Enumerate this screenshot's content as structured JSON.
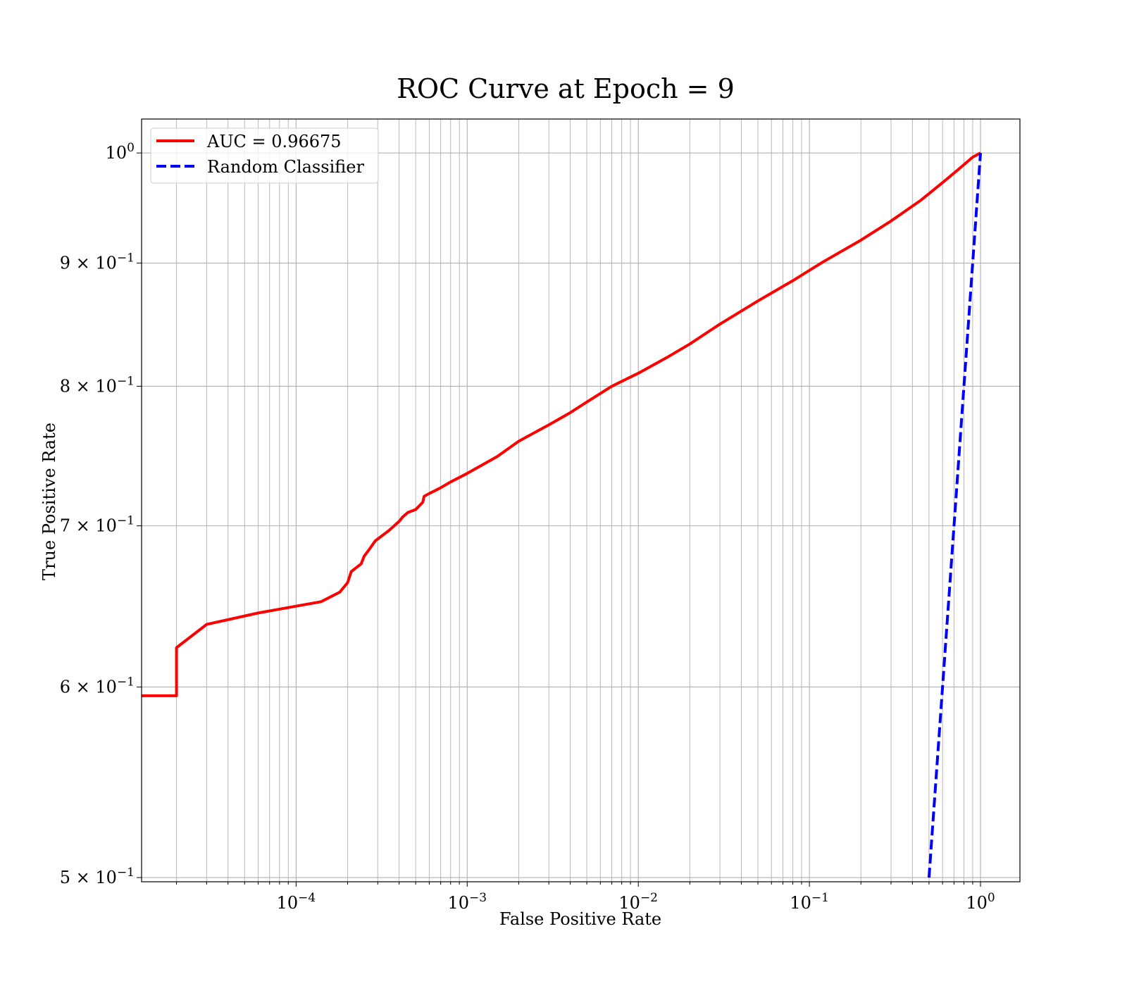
{
  "chart_data": {
    "type": "line",
    "title": "ROC Curve at Epoch = 9",
    "xlabel": "False Positive Rate",
    "ylabel": "True Positive Rate",
    "xscale": "log",
    "yscale": "log",
    "xlim": [
      1.25e-05,
      1.7
    ],
    "ylim": [
      0.498,
      1.033
    ],
    "grid": "both",
    "legend_position": "top-left",
    "x_ticks": [
      {
        "value": 0.0001,
        "base": "10",
        "exp": "−4"
      },
      {
        "value": 0.001,
        "base": "10",
        "exp": "−3"
      },
      {
        "value": 0.01,
        "base": "10",
        "exp": "−2"
      },
      {
        "value": 0.1,
        "base": "10",
        "exp": "−1"
      },
      {
        "value": 1,
        "base": "10",
        "exp": "0"
      }
    ],
    "y_ticks": [
      {
        "value": 0.5,
        "base": "5 × 10",
        "exp": "−1"
      },
      {
        "value": 0.6,
        "base": "6 × 10",
        "exp": "−1"
      },
      {
        "value": 0.7,
        "base": "7 × 10",
        "exp": "−1"
      },
      {
        "value": 0.8,
        "base": "8 × 10",
        "exp": "−1"
      },
      {
        "value": 0.9,
        "base": "9 × 10",
        "exp": "−1"
      },
      {
        "value": 1.0,
        "base": "10",
        "exp": "0"
      }
    ],
    "series": [
      {
        "name": "AUC = 0.96675",
        "color": "#ff0000",
        "style": "solid",
        "x": [
          1.25e-05,
          2e-05,
          2e-05,
          3e-05,
          6e-05,
          0.00014,
          0.00018,
          0.0002,
          0.00021,
          0.00024,
          0.00025,
          0.00027,
          0.00029,
          0.00035,
          0.0004,
          0.00042,
          0.00045,
          0.0005,
          0.00052,
          0.00055,
          0.00056,
          0.0006,
          0.00065,
          0.0007,
          0.0008,
          0.001,
          0.0015,
          0.002,
          0.003,
          0.004,
          0.005,
          0.007,
          0.01,
          0.015,
          0.02,
          0.03,
          0.05,
          0.08,
          0.12,
          0.2,
          0.3,
          0.45,
          0.6,
          0.75,
          0.9,
          1.0
        ],
        "y": [
          0.595,
          0.595,
          0.623,
          0.637,
          0.644,
          0.651,
          0.657,
          0.663,
          0.67,
          0.675,
          0.68,
          0.685,
          0.69,
          0.697,
          0.703,
          0.706,
          0.709,
          0.711,
          0.713,
          0.716,
          0.72,
          0.722,
          0.724,
          0.726,
          0.73,
          0.736,
          0.748,
          0.759,
          0.771,
          0.78,
          0.788,
          0.8,
          0.81,
          0.823,
          0.833,
          0.849,
          0.868,
          0.885,
          0.901,
          0.92,
          0.937,
          0.956,
          0.972,
          0.985,
          0.996,
          1.0
        ]
      },
      {
        "name": "Random Classifier",
        "color": "#0000ff",
        "style": "dashed",
        "x": [
          0.5,
          1.0
        ],
        "y": [
          0.5,
          1.0
        ]
      }
    ]
  }
}
